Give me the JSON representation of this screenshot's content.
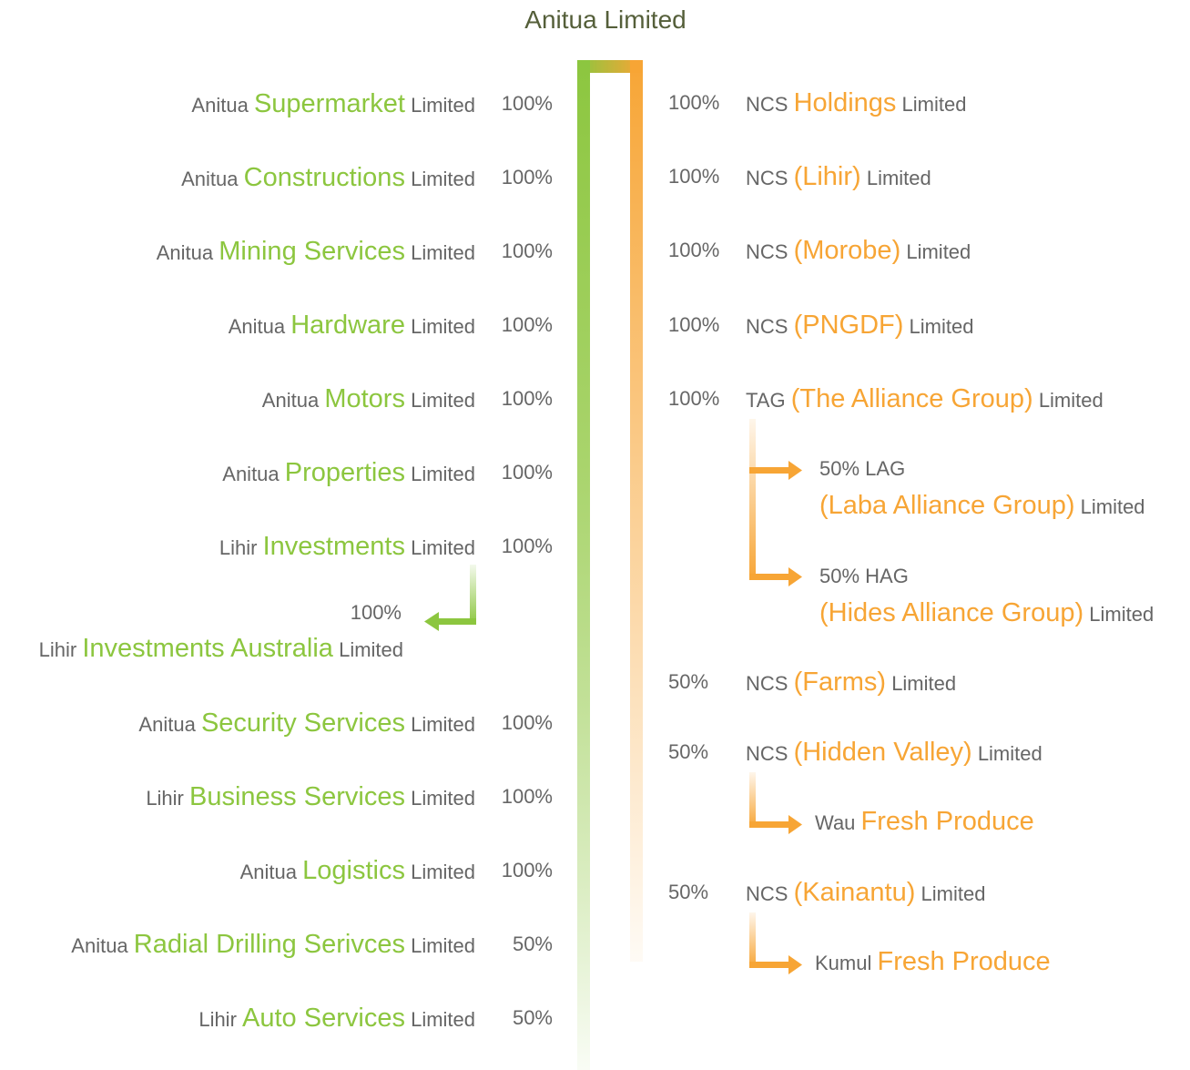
{
  "title": "Anitua Limited",
  "left": [
    {
      "prefix": "Anitua",
      "name": "Supermarket",
      "suffix": "Limited",
      "share": "100%"
    },
    {
      "prefix": "Anitua",
      "name": "Constructions",
      "suffix": "Limited",
      "share": "100%"
    },
    {
      "prefix": "Anitua",
      "name": "Mining Services",
      "suffix": "Limited",
      "share": "100%"
    },
    {
      "prefix": "Anitua",
      "name": "Hardware",
      "suffix": "Limited",
      "share": "100%"
    },
    {
      "prefix": "Anitua",
      "name": "Motors",
      "suffix": "Limited",
      "share": "100%"
    },
    {
      "prefix": "Anitua",
      "name": "Properties",
      "suffix": "Limited",
      "share": "100%"
    },
    {
      "prefix": "Lihir",
      "name": "Investments",
      "suffix": "Limited",
      "share": "100%",
      "child": {
        "share": "100%",
        "prefix": "Lihir",
        "name": "Investments Australia",
        "suffix": "Limited"
      }
    },
    {
      "prefix": "Anitua",
      "name": "Security Services",
      "suffix": "Limited",
      "share": "100%"
    },
    {
      "prefix": "Lihir",
      "name": "Business Services",
      "suffix": "Limited",
      "share": "100%"
    },
    {
      "prefix": "Anitua",
      "name": "Logistics",
      "suffix": "Limited",
      "share": "100%"
    },
    {
      "prefix": "Anitua",
      "name": "Radial Drilling Serivces",
      "suffix": "Limited",
      "share": "50%"
    },
    {
      "prefix": "Lihir",
      "name": "Auto Services",
      "suffix": "Limited",
      "share": "50%"
    }
  ],
  "right": [
    {
      "share": "100%",
      "prefix": "NCS",
      "name": "Holdings",
      "suffix": "Limited"
    },
    {
      "share": "100%",
      "prefix": "NCS",
      "name": "(Lihir)",
      "suffix": "Limited"
    },
    {
      "share": "100%",
      "prefix": "NCS",
      "name": "(Morobe)",
      "suffix": "Limited"
    },
    {
      "share": "100%",
      "prefix": "NCS",
      "name": "(PNGDF)",
      "suffix": "Limited"
    },
    {
      "share": "100%",
      "prefix": "TAG",
      "name": "(The Alliance Group)",
      "suffix": "Limited",
      "children": [
        {
          "share": "50%",
          "prefix": "LAG",
          "name": "(Laba Alliance Group)",
          "suffix": "Limited"
        },
        {
          "share": "50%",
          "prefix": "HAG",
          "name": "(Hides Alliance Group)",
          "suffix": "Limited"
        }
      ]
    },
    {
      "share": "50%",
      "prefix": "NCS",
      "name": "(Farms)",
      "suffix": "Limited"
    },
    {
      "share": "50%",
      "prefix": "NCS",
      "name": "(Hidden Valley)",
      "suffix": "Limited",
      "children": [
        {
          "prefix": "Wau",
          "name": "Fresh Produce"
        }
      ]
    },
    {
      "share": "50%",
      "prefix": "NCS",
      "name": "(Kainantu)",
      "suffix": "Limited",
      "children": [
        {
          "prefix": "Kumul",
          "name": "Fresh Produce"
        }
      ]
    }
  ]
}
